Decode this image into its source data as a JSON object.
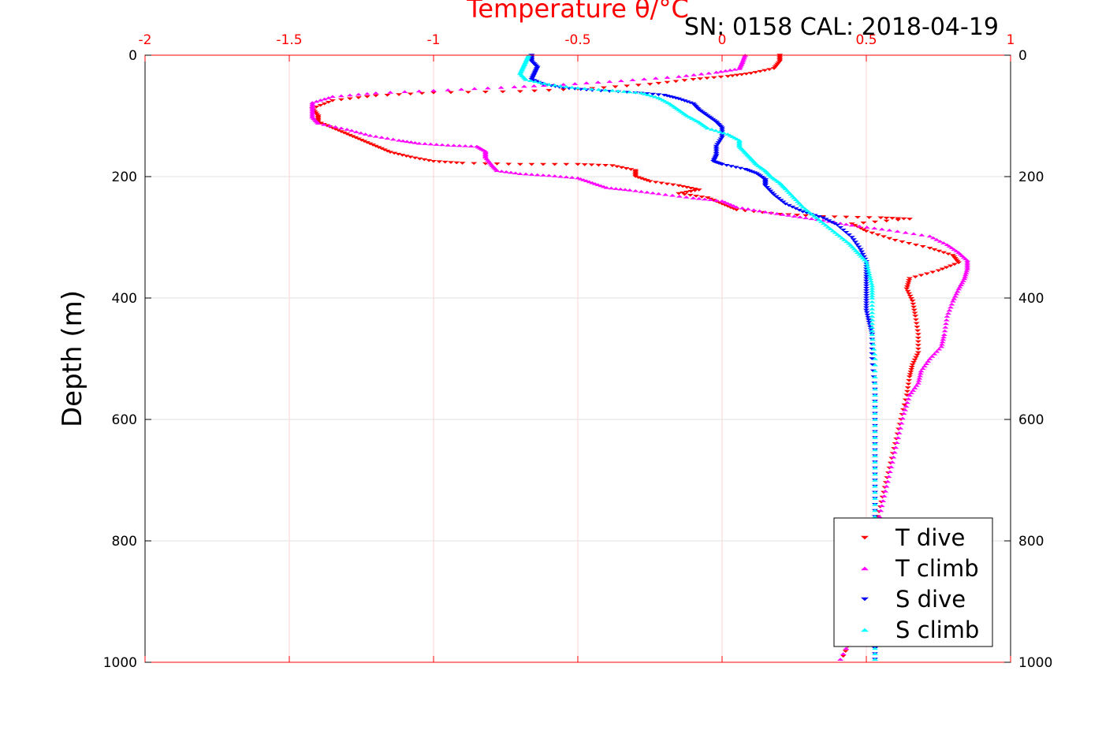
{
  "chart_data": {
    "type": "scatter",
    "title": "Temperature θ/°C",
    "annotation": "SN: 0158  CAL: 2018-04-19",
    "xlabel": "Temperature θ/°C",
    "ylabel": "Depth (m)",
    "xlim": [
      -2,
      1
    ],
    "ylim": [
      0,
      1000
    ],
    "y_reversed": true,
    "x_axis_position": "top",
    "x_ticks": [
      -2,
      -1.5,
      -1,
      -0.5,
      0,
      0.5,
      1
    ],
    "x_tick_labels": [
      "-2",
      "-1.5",
      "-1",
      "-0.5",
      "0",
      "0.5",
      "1"
    ],
    "y_ticks": [
      0,
      200,
      400,
      600,
      800,
      1000
    ],
    "y_tick_labels": [
      "0",
      "200",
      "400",
      "600",
      "800",
      "1000"
    ],
    "grid": true,
    "legend_position": "bottom-right",
    "colors": {
      "axis_top": "#ff0000",
      "axis_other": "#000000",
      "grid": "#e0e0e0",
      "grid_x": "#ffd0d6"
    },
    "series": [
      {
        "name": "T dive",
        "color": "#ff0000",
        "marker": "triangle-down",
        "points": [
          [
            0.2,
            0
          ],
          [
            0.2,
            10
          ],
          [
            0.18,
            22
          ],
          [
            0.1,
            30
          ],
          [
            0.02,
            35
          ],
          [
            -0.1,
            40
          ],
          [
            -0.25,
            48
          ],
          [
            -0.45,
            55
          ],
          [
            -0.7,
            60
          ],
          [
            -1,
            62
          ],
          [
            -1.2,
            67
          ],
          [
            -1.35,
            75
          ],
          [
            -1.42,
            88
          ],
          [
            -1.4,
            100
          ],
          [
            -1.4,
            110
          ],
          [
            -1.35,
            120
          ],
          [
            -1.3,
            130
          ],
          [
            -1.25,
            140
          ],
          [
            -1.2,
            150
          ],
          [
            -1.15,
            160
          ],
          [
            -1.08,
            168
          ],
          [
            -1,
            175
          ],
          [
            -0.9,
            178
          ],
          [
            -0.7,
            180
          ],
          [
            -0.5,
            180
          ],
          [
            -0.38,
            182
          ],
          [
            -0.3,
            190
          ],
          [
            -0.3,
            200
          ],
          [
            -0.25,
            208
          ],
          [
            -0.15,
            215
          ],
          [
            -0.08,
            222
          ],
          [
            -0.15,
            228
          ],
          [
            -0.05,
            235
          ],
          [
            0,
            245
          ],
          [
            0.05,
            255
          ],
          [
            0.2,
            262
          ],
          [
            0.35,
            266
          ],
          [
            0.55,
            268
          ],
          [
            0.65,
            270
          ],
          [
            0.45,
            278
          ],
          [
            0.5,
            290
          ],
          [
            0.6,
            305
          ],
          [
            0.72,
            318
          ],
          [
            0.8,
            330
          ],
          [
            0.82,
            342
          ],
          [
            0.75,
            355
          ],
          [
            0.65,
            368
          ],
          [
            0.64,
            385
          ],
          [
            0.66,
            405
          ],
          [
            0.67,
            430
          ],
          [
            0.68,
            460
          ],
          [
            0.68,
            490
          ],
          [
            0.66,
            510
          ],
          [
            0.65,
            530
          ],
          [
            0.64,
            560
          ],
          [
            0.62,
            600
          ],
          [
            0.6,
            640
          ],
          [
            0.58,
            680
          ],
          [
            0.56,
            720
          ],
          [
            0.54,
            760
          ],
          [
            0.52,
            800
          ],
          [
            0.5,
            850
          ],
          [
            0.48,
            900
          ],
          [
            0.46,
            950
          ],
          [
            0.42,
            990
          ]
        ]
      },
      {
        "name": "T climb",
        "color": "#ff00ff",
        "marker": "triangle-up",
        "points": [
          [
            0.08,
            0
          ],
          [
            0.07,
            12
          ],
          [
            0.06,
            22
          ],
          [
            -0.02,
            28
          ],
          [
            -0.15,
            35
          ],
          [
            -0.35,
            42
          ],
          [
            -0.55,
            48
          ],
          [
            -0.72,
            52
          ],
          [
            -0.95,
            57
          ],
          [
            -1.2,
            62
          ],
          [
            -1.35,
            68
          ],
          [
            -1.42,
            78
          ],
          [
            -1.42,
            90
          ],
          [
            -1.42,
            102
          ],
          [
            -1.4,
            112
          ],
          [
            -1.3,
            122
          ],
          [
            -1.22,
            132
          ],
          [
            -1.12,
            140
          ],
          [
            -1.05,
            145
          ],
          [
            -0.95,
            148
          ],
          [
            -0.85,
            150
          ],
          [
            -0.82,
            158
          ],
          [
            -0.82,
            168
          ],
          [
            -0.8,
            180
          ],
          [
            -0.78,
            190
          ],
          [
            -0.7,
            195
          ],
          [
            -0.6,
            198
          ],
          [
            -0.5,
            202
          ],
          [
            -0.45,
            210
          ],
          [
            -0.4,
            218
          ],
          [
            -0.32,
            222
          ],
          [
            -0.22,
            228
          ],
          [
            -0.1,
            235
          ],
          [
            0,
            240
          ],
          [
            0.05,
            250
          ],
          [
            0.15,
            258
          ],
          [
            0.25,
            265
          ],
          [
            0.35,
            272
          ],
          [
            0.45,
            280
          ],
          [
            0.58,
            288
          ],
          [
            0.72,
            298
          ],
          [
            0.78,
            312
          ],
          [
            0.82,
            325
          ],
          [
            0.85,
            338
          ],
          [
            0.85,
            352
          ],
          [
            0.84,
            368
          ],
          [
            0.82,
            385
          ],
          [
            0.8,
            405
          ],
          [
            0.78,
            430
          ],
          [
            0.77,
            460
          ],
          [
            0.76,
            480
          ],
          [
            0.72,
            500
          ],
          [
            0.69,
            520
          ],
          [
            0.68,
            540
          ],
          [
            0.65,
            560
          ],
          [
            0.63,
            590
          ],
          [
            0.61,
            630
          ],
          [
            0.59,
            670
          ],
          [
            0.57,
            710
          ],
          [
            0.55,
            750
          ],
          [
            0.53,
            800
          ],
          [
            0.51,
            850
          ],
          [
            0.48,
            900
          ],
          [
            0.46,
            950
          ],
          [
            0.41,
            995
          ]
        ]
      },
      {
        "name": "S dive",
        "color": "#0000ff",
        "marker": "triangle-down",
        "points": [
          [
            -0.66,
            0
          ],
          [
            -0.66,
            10
          ],
          [
            -0.64,
            20
          ],
          [
            -0.65,
            30
          ],
          [
            -0.66,
            40
          ],
          [
            -0.62,
            48
          ],
          [
            -0.55,
            54
          ],
          [
            -0.45,
            58
          ],
          [
            -0.3,
            62
          ],
          [
            -0.2,
            66
          ],
          [
            -0.15,
            72
          ],
          [
            -0.1,
            80
          ],
          [
            -0.08,
            90
          ],
          [
            -0.05,
            100
          ],
          [
            -0.02,
            110
          ],
          [
            0,
            120
          ],
          [
            0,
            135
          ],
          [
            -0.02,
            150
          ],
          [
            -0.02,
            165
          ],
          [
            -0.03,
            175
          ],
          [
            0,
            180
          ],
          [
            0.08,
            188
          ],
          [
            0.12,
            195
          ],
          [
            0.15,
            205
          ],
          [
            0.15,
            215
          ],
          [
            0.18,
            230
          ],
          [
            0.22,
            245
          ],
          [
            0.28,
            258
          ],
          [
            0.35,
            268
          ],
          [
            0.4,
            280
          ],
          [
            0.45,
            300
          ],
          [
            0.48,
            320
          ],
          [
            0.5,
            340
          ],
          [
            0.5,
            360
          ],
          [
            0.5,
            380
          ],
          [
            0.5,
            400
          ],
          [
            0.5,
            420
          ],
          [
            0.51,
            440
          ],
          [
            0.52,
            460
          ],
          [
            0.52,
            500
          ],
          [
            0.53,
            550
          ],
          [
            0.53,
            600
          ],
          [
            0.53,
            650
          ],
          [
            0.53,
            700
          ],
          [
            0.53,
            750
          ],
          [
            0.53,
            800
          ],
          [
            0.53,
            850
          ],
          [
            0.53,
            900
          ],
          [
            0.53,
            950
          ],
          [
            0.53,
            995
          ]
        ]
      },
      {
        "name": "S climb",
        "color": "#00ffff",
        "marker": "triangle-up",
        "points": [
          [
            -0.67,
            0
          ],
          [
            -0.68,
            10
          ],
          [
            -0.69,
            20
          ],
          [
            -0.7,
            30
          ],
          [
            -0.68,
            40
          ],
          [
            -0.6,
            48
          ],
          [
            -0.5,
            54
          ],
          [
            -0.38,
            58
          ],
          [
            -0.28,
            62
          ],
          [
            -0.22,
            70
          ],
          [
            -0.18,
            80
          ],
          [
            -0.15,
            90
          ],
          [
            -0.12,
            100
          ],
          [
            -0.08,
            110
          ],
          [
            -0.05,
            120
          ],
          [
            0.02,
            130
          ],
          [
            0.06,
            140
          ],
          [
            0.06,
            150
          ],
          [
            0.08,
            160
          ],
          [
            0.1,
            170
          ],
          [
            0.12,
            180
          ],
          [
            0.15,
            190
          ],
          [
            0.17,
            200
          ],
          [
            0.2,
            210
          ],
          [
            0.22,
            220
          ],
          [
            0.25,
            235
          ],
          [
            0.28,
            250
          ],
          [
            0.32,
            265
          ],
          [
            0.36,
            280
          ],
          [
            0.4,
            295
          ],
          [
            0.44,
            310
          ],
          [
            0.47,
            325
          ],
          [
            0.5,
            340
          ],
          [
            0.51,
            360
          ],
          [
            0.52,
            380
          ],
          [
            0.52,
            400
          ],
          [
            0.52,
            430
          ],
          [
            0.52,
            460
          ],
          [
            0.53,
            500
          ],
          [
            0.53,
            550
          ],
          [
            0.53,
            600
          ],
          [
            0.53,
            650
          ],
          [
            0.53,
            700
          ],
          [
            0.53,
            750
          ],
          [
            0.53,
            800
          ],
          [
            0.53,
            850
          ],
          [
            0.53,
            900
          ],
          [
            0.53,
            950
          ],
          [
            0.53,
            995
          ]
        ]
      }
    ]
  }
}
